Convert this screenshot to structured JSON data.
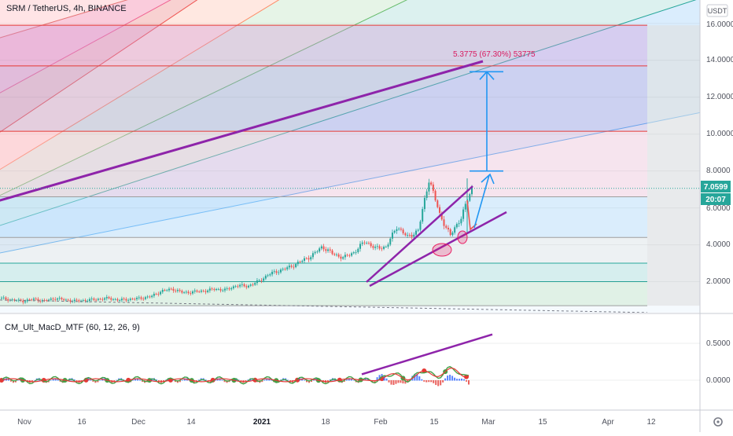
{
  "header": {
    "symbol_line": "SRM / TetherUS, 4h, BINANCE",
    "currency": "USDT"
  },
  "price_axis": {
    "ticks": [
      "16.0000",
      "14.0000",
      "12.0000",
      "10.0000",
      "8.0000",
      "6.0000",
      "4.0000",
      "2.0000"
    ],
    "last_price": "7.0599",
    "countdown": "20:07"
  },
  "measure_label": "5.3775 (67.30%) 53775",
  "indicator": {
    "label": "CM_Ult_MacD_MTF (60, 12, 26, 9)",
    "ticks": [
      "0.5000",
      "0.0000"
    ]
  },
  "time_axis": {
    "labels": [
      "Nov",
      "16",
      "Dec",
      "14",
      "2021",
      "18",
      "Feb",
      "15",
      "Mar",
      "15",
      "Apr",
      "12"
    ]
  },
  "colors": {
    "up": "#26a69a",
    "down": "#ef5350",
    "drawing_purple": "#8e24aa",
    "arrow_blue": "#2196f3",
    "last_price_bg": "#26a69a",
    "fib_red_line": "#e53935",
    "fib_teal_line": "#26a69a",
    "ellipse": "#e91e63"
  },
  "chart_data": {
    "type": "line",
    "title": "SRM / TetherUS, 4h, BINANCE",
    "x_labels": [
      "Nov",
      "16",
      "Dec",
      "14",
      "2021",
      "18",
      "Feb",
      "15",
      "Mar",
      "15",
      "Apr",
      "12"
    ],
    "ylim": [
      0,
      16.8
    ],
    "series": [
      {
        "name": "SRM / TetherUS",
        "values": [
          1.1,
          1.0,
          0.95,
          1.05,
          0.95,
          1.1,
          1.0,
          0.95,
          1.0,
          1.05,
          1.1,
          1.0,
          1.05,
          1.1,
          1.2,
          1.5,
          1.6,
          1.4,
          1.45,
          1.5,
          1.6,
          1.55,
          1.8,
          1.75,
          2.0,
          2.4,
          2.6,
          2.8,
          3.1,
          3.4,
          3.9,
          3.5,
          3.3,
          3.6,
          4.2,
          3.8,
          3.9,
          5.0,
          4.4,
          4.8,
          7.6,
          5.6,
          4.5,
          5.5,
          7.06
        ]
      }
    ],
    "fib_levels": [
      0.7,
      2.0,
      3.0,
      4.4,
      6.6,
      10.15,
      13.7,
      15.9
    ],
    "last_price": 7.0599,
    "measure": {
      "from": 8.0,
      "to": 13.38,
      "change": 5.3775,
      "percent": 67.3
    },
    "grid": true,
    "indicator": {
      "name": "CM_Ult_MacD_MTF (60, 12, 26, 9)",
      "ylim": [
        -0.15,
        0.6
      ]
    }
  }
}
